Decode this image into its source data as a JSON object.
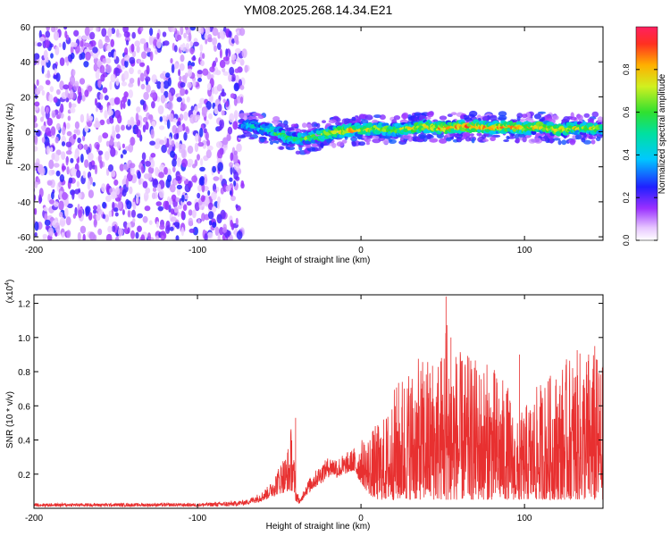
{
  "title": "YM08.2025.268.14.34.E21",
  "chart_data": [
    {
      "type": "heatmap",
      "title": "YM08.2025.268.14.34.E21",
      "xlabel": "Height of straight line (km)",
      "ylabel": "Frequency (Hz)",
      "xlim": [
        -200,
        148
      ],
      "ylim": [
        -62,
        60
      ],
      "x_ticks": [
        -200,
        -100,
        0,
        100
      ],
      "x_tick_labels": [
        "-200",
        "-100",
        "0",
        "100"
      ],
      "y_ticks": [
        60,
        40,
        20,
        0,
        -20,
        -40,
        -60
      ],
      "y_tick_labels": [
        "60",
        "40",
        "20",
        "0",
        "-20",
        "-40",
        "-60"
      ],
      "colorbar": {
        "label": "Normalized spectral amplitude",
        "range": [
          0,
          1
        ],
        "ticks": [
          0.0,
          0.2,
          0.4,
          0.6,
          0.8
        ],
        "tick_labels": [
          "0.0",
          "0.2",
          "0.4",
          "0.6",
          "0.8"
        ]
      },
      "noise_region_x": [
        -200,
        -72
      ],
      "ridge": {
        "x": [
          -73,
          -65,
          -55,
          -48,
          -42,
          -35,
          -25,
          -15,
          -5,
          0,
          10,
          20,
          30,
          40,
          50,
          60,
          70,
          80,
          90,
          100,
          110,
          120,
          130,
          140,
          148
        ],
        "freq": [
          4,
          3,
          1,
          -2,
          -4,
          -4,
          -2,
          0,
          1,
          1,
          2,
          1,
          2,
          3,
          2,
          3,
          3,
          2,
          3,
          2,
          3,
          1,
          2,
          2,
          2
        ],
        "amplitude": [
          0.4,
          0.45,
          0.5,
          0.6,
          0.55,
          0.6,
          0.7,
          0.8,
          0.85,
          0.7,
          0.75,
          0.7,
          0.75,
          0.8,
          0.8,
          0.85,
          0.9,
          0.85,
          0.85,
          0.8,
          0.85,
          0.8,
          0.75,
          0.7,
          0.65
        ]
      }
    },
    {
      "type": "line",
      "xlabel": "Height of straight line (km)",
      "ylabel": "SNR (10 * v/v)",
      "y_scale_label": "(x10",
      "y_scale_exponent": "4",
      "y_scale_suffix": ")",
      "xlim": [
        -200,
        148
      ],
      "ylim": [
        0,
        1.25
      ],
      "x_ticks": [
        -200,
        -100,
        0,
        100
      ],
      "x_tick_labels": [
        "-200",
        "-100",
        "0",
        "100"
      ],
      "y_ticks": [
        0.2,
        0.4,
        0.6,
        0.8,
        1.0,
        1.2
      ],
      "y_tick_labels": [
        "0.2",
        "0.4",
        "0.6",
        "0.8",
        "1.0",
        "1.2"
      ],
      "series": [
        {
          "name": "SNR",
          "color": "#e83030",
          "x": [
            -200,
            -150,
            -100,
            -80,
            -70,
            -60,
            -55,
            -50,
            -45,
            -42,
            -40,
            -37,
            -35,
            -30,
            -25,
            -20,
            -15,
            -10,
            -5,
            0,
            5,
            10,
            15,
            20,
            25,
            30,
            40,
            50,
            52,
            55,
            60,
            70,
            80,
            90,
            95,
            100,
            110,
            120,
            130,
            140,
            148
          ],
          "envelope": [
            0.03,
            0.03,
            0.03,
            0.04,
            0.05,
            0.1,
            0.15,
            0.25,
            0.35,
            0.53,
            0.12,
            0.05,
            0.12,
            0.2,
            0.25,
            0.3,
            0.3,
            0.32,
            0.35,
            0.4,
            0.45,
            0.5,
            0.55,
            0.7,
            0.8,
            0.85,
            0.9,
            0.95,
            1.24,
            1.0,
            0.92,
            0.88,
            0.85,
            0.72,
            0.5,
            0.6,
            0.75,
            0.82,
            0.92,
            0.95,
            0.85
          ],
          "baseline": [
            0.01,
            0.01,
            0.01,
            0.01,
            0.02,
            0.04,
            0.06,
            0.08,
            0.1,
            0.1,
            0.04,
            0.02,
            0.06,
            0.1,
            0.14,
            0.18,
            0.18,
            0.2,
            0.22,
            0.15,
            0.08,
            0.05,
            0.05,
            0.05,
            0.05,
            0.05,
            0.05,
            0.05,
            0.05,
            0.05,
            0.05,
            0.05,
            0.05,
            0.05,
            0.05,
            0.05,
            0.05,
            0.05,
            0.05,
            0.05,
            0.05
          ]
        }
      ]
    }
  ]
}
